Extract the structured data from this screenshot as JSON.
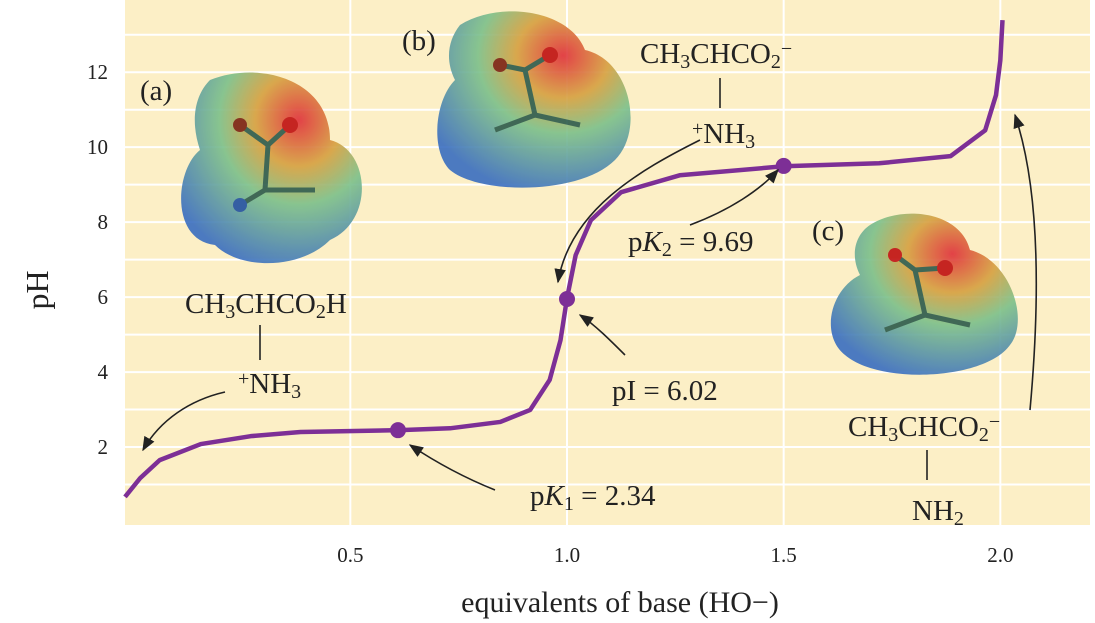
{
  "chart_data": {
    "type": "line",
    "x_label": "equivalents of base (HO−)",
    "y_label": "pH",
    "xlim": [
      -0.02,
      2.2
    ],
    "ylim": [
      0,
      13.9
    ],
    "xticks": [
      0.5,
      {
        "value": 1,
        "label": "1.0"
      },
      1.5,
      {
        "value": 2,
        "label": "2.0"
      }
    ],
    "yticks": [
      2,
      4,
      6,
      8,
      10,
      12
    ],
    "yminor": [
      1,
      3,
      5,
      7,
      9,
      11,
      13
    ],
    "grid": true,
    "background": "#fcefc6",
    "series": [
      {
        "color": "#7d2f96",
        "x": [
          -0.02,
          0.015,
          0.06,
          0.155,
          0.27,
          0.385,
          0.615,
          0.73,
          0.846,
          0.915,
          0.96,
          0.985,
          1.0,
          1.02,
          1.055,
          1.125,
          1.26,
          1.5,
          1.72,
          1.885,
          1.965,
          1.99,
          2.0,
          2.005
        ],
        "values": [
          0.67,
          1.17,
          1.65,
          2.08,
          2.29,
          2.4,
          2.45,
          2.5,
          2.67,
          2.99,
          3.79,
          4.85,
          5.97,
          7.12,
          8.05,
          8.8,
          9.25,
          9.49,
          9.57,
          9.76,
          10.45,
          11.39,
          12.32,
          13.39
        ]
      }
    ],
    "points": {
      "color": "#7d2f96",
      "x": [
        0.61,
        1.0,
        1.5
      ],
      "values": [
        2.45,
        5.95,
        9.5
      ]
    },
    "annotations": [
      {
        "segments": [
          {
            "text": "(a)"
          }
        ]
      },
      {
        "segments": [
          {
            "text": "(b)"
          }
        ]
      },
      {
        "segments": [
          {
            "text": "(c)"
          }
        ]
      },
      {
        "segments": [
          {
            "text": "CH"
          },
          {
            "text": "3",
            "style": "sub"
          },
          {
            "text": "CHCO"
          },
          {
            "text": "2",
            "style": "sub"
          },
          {
            "text": "H"
          }
        ]
      },
      {
        "segments": [
          {
            "text": "+",
            "style": "sup"
          },
          {
            "text": "NH"
          },
          {
            "text": "3",
            "style": "sub"
          }
        ]
      },
      {
        "segments": [
          {
            "text": "CH"
          },
          {
            "text": "3",
            "style": "sub"
          },
          {
            "text": "CHCO"
          },
          {
            "text": "2",
            "style": "sub"
          },
          {
            "text": "−",
            "style": "sup"
          }
        ]
      },
      {
        "segments": [
          {
            "text": "+",
            "style": "sup"
          },
          {
            "text": "NH"
          },
          {
            "text": "3",
            "style": "sub"
          }
        ]
      },
      {
        "segments": [
          {
            "text": "p"
          },
          {
            "text": "K",
            "style": "italic"
          },
          {
            "text": "2",
            "style": "sub"
          },
          {
            "text": " = 9.69"
          }
        ]
      },
      {
        "segments": [
          {
            "text": "pI = 6.02"
          }
        ]
      },
      {
        "segments": [
          {
            "text": "p"
          },
          {
            "text": "K",
            "style": "italic"
          },
          {
            "text": "1",
            "style": "sub"
          },
          {
            "text": " = 2.34"
          }
        ]
      },
      {
        "segments": [
          {
            "text": "CH"
          },
          {
            "text": "3",
            "style": "sub"
          },
          {
            "text": "CHCO"
          },
          {
            "text": "2",
            "style": "sub"
          },
          {
            "text": "−",
            "style": "sup"
          }
        ]
      },
      {
        "segments": [
          {
            "text": "NH"
          },
          {
            "text": "2",
            "style": "sub"
          }
        ]
      }
    ]
  }
}
